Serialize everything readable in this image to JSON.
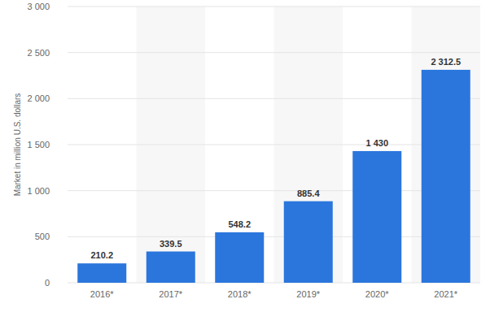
{
  "chart_data": {
    "type": "bar",
    "y_label": "Market in million U.S. dollars",
    "categories": [
      "2016*",
      "2017*",
      "2018*",
      "2019*",
      "2020*",
      "2021*"
    ],
    "values": [
      210.2,
      339.5,
      548.2,
      885.4,
      1430,
      2312.5
    ],
    "value_labels": [
      "210.2",
      "339.5",
      "548.2",
      "885.4",
      "1 430",
      "2 312.5"
    ],
    "color": "#2a76dd",
    "ylim": [
      0,
      3000
    ],
    "yticks": [
      0,
      500,
      {
        "value": 1000,
        "label": "1 000"
      },
      {
        "value": 1500,
        "label": "1 500"
      },
      {
        "value": 2000,
        "label": "2 000"
      },
      {
        "value": 2500,
        "label": "2 500"
      },
      {
        "value": 3000,
        "label": "3 000"
      }
    ],
    "grid": true,
    "data_labels": true
  }
}
